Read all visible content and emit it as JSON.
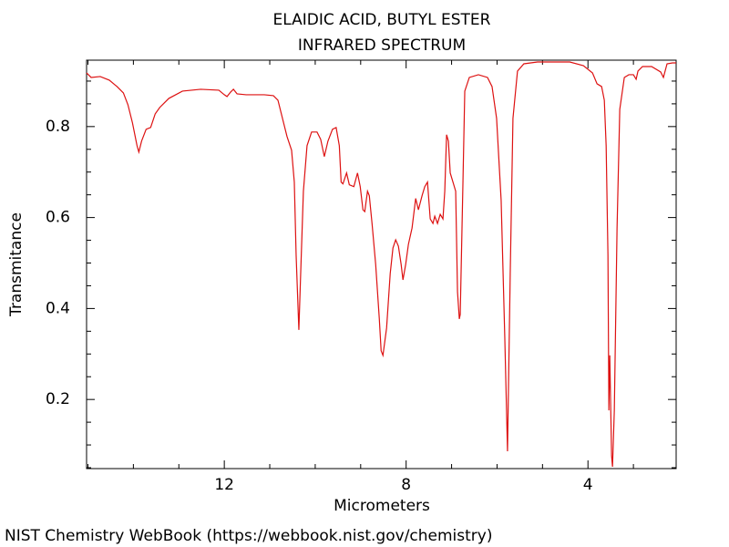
{
  "chart_data": {
    "type": "line",
    "title": "ELAIDIC ACID, BUTYL ESTER",
    "subtitle": "INFRARED SPECTRUM",
    "x_label": "Micrometers",
    "y_label": "Transmitance",
    "source": "NIST Chemistry WebBook (https://webbook.nist.gov/chemistry)",
    "xlim": [
      15.03,
      2.06
    ],
    "ylim": [
      0.048,
      0.946
    ],
    "xticks": [
      12,
      8,
      4
    ],
    "yticks": [
      0.8,
      0.6,
      0.4,
      0.2
    ],
    "xminorticks": [
      15,
      14,
      13,
      11,
      10,
      9,
      7,
      6,
      5,
      3
    ],
    "yminorticks": [
      0.05,
      0.1,
      0.15,
      0.25,
      0.3,
      0.35,
      0.45,
      0.5,
      0.55,
      0.65,
      0.7,
      0.75,
      0.85,
      0.9
    ],
    "color": "#dd1111",
    "x": [
      15.03,
      14.93,
      14.73,
      14.53,
      14.36,
      14.22,
      14.12,
      14.02,
      13.92,
      13.88,
      13.82,
      13.72,
      13.62,
      13.52,
      13.42,
      13.22,
      12.92,
      12.52,
      12.12,
      12.0,
      11.94,
      11.86,
      11.8,
      11.72,
      11.52,
      11.12,
      10.92,
      10.82,
      10.72,
      10.62,
      10.52,
      10.46,
      10.42,
      10.36,
      10.32,
      10.26,
      10.18,
      10.08,
      9.96,
      9.88,
      9.8,
      9.72,
      9.62,
      9.54,
      9.47,
      9.43,
      9.39,
      9.31,
      9.25,
      9.15,
      9.07,
      9.01,
      8.95,
      8.91,
      8.85,
      8.81,
      8.75,
      8.67,
      8.59,
      8.55,
      8.51,
      8.43,
      8.35,
      8.29,
      8.23,
      8.17,
      8.11,
      8.07,
      8.01,
      7.95,
      7.87,
      7.79,
      7.73,
      7.65,
      7.59,
      7.53,
      7.47,
      7.41,
      7.37,
      7.31,
      7.25,
      7.19,
      7.15,
      7.11,
      7.07,
      7.03,
      6.97,
      6.91,
      6.87,
      6.83,
      6.81,
      6.75,
      6.71,
      6.61,
      6.41,
      6.21,
      6.11,
      6.01,
      5.91,
      5.83,
      5.77,
      5.71,
      5.65,
      5.55,
      5.41,
      5.11,
      4.71,
      4.4,
      4.1,
      3.9,
      3.8,
      3.7,
      3.64,
      3.6,
      3.56,
      3.54,
      3.52,
      3.5,
      3.48,
      3.46,
      3.42,
      3.36,
      3.3,
      3.2,
      3.1,
      3.0,
      2.94,
      2.9,
      2.8,
      2.6,
      2.4,
      2.34,
      2.26,
      2.14,
      2.06
    ],
    "values": [
      0.918,
      0.908,
      0.91,
      0.902,
      0.888,
      0.874,
      0.848,
      0.808,
      0.758,
      0.744,
      0.768,
      0.794,
      0.798,
      0.828,
      0.842,
      0.862,
      0.878,
      0.882,
      0.88,
      0.87,
      0.866,
      0.876,
      0.882,
      0.872,
      0.87,
      0.87,
      0.868,
      0.858,
      0.818,
      0.778,
      0.748,
      0.678,
      0.517,
      0.353,
      0.477,
      0.658,
      0.758,
      0.788,
      0.788,
      0.772,
      0.734,
      0.768,
      0.794,
      0.798,
      0.758,
      0.678,
      0.674,
      0.698,
      0.672,
      0.668,
      0.698,
      0.668,
      0.617,
      0.613,
      0.658,
      0.648,
      0.587,
      0.497,
      0.377,
      0.307,
      0.297,
      0.357,
      0.477,
      0.533,
      0.551,
      0.537,
      0.497,
      0.463,
      0.497,
      0.541,
      0.577,
      0.642,
      0.617,
      0.648,
      0.668,
      0.678,
      0.597,
      0.587,
      0.603,
      0.587,
      0.607,
      0.597,
      0.658,
      0.782,
      0.768,
      0.698,
      0.678,
      0.658,
      0.437,
      0.377,
      0.387,
      0.678,
      0.878,
      0.908,
      0.914,
      0.908,
      0.888,
      0.818,
      0.638,
      0.337,
      0.086,
      0.477,
      0.818,
      0.922,
      0.938,
      0.942,
      0.942,
      0.942,
      0.934,
      0.918,
      0.894,
      0.888,
      0.858,
      0.758,
      0.517,
      0.176,
      0.297,
      0.186,
      0.076,
      0.052,
      0.176,
      0.577,
      0.838,
      0.908,
      0.914,
      0.914,
      0.904,
      0.922,
      0.932,
      0.932,
      0.92,
      0.908,
      0.938,
      0.94,
      0.94
    ]
  }
}
